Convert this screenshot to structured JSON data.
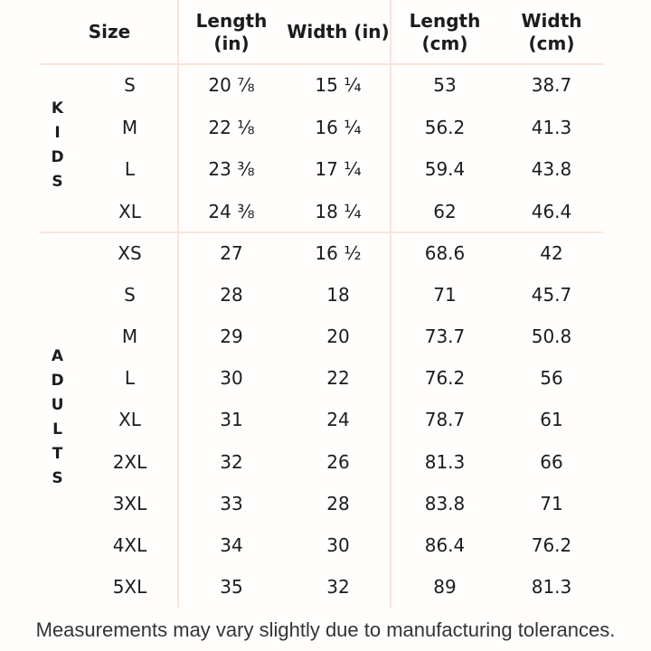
{
  "chart_data": {
    "type": "table",
    "headers": {
      "size": "Size",
      "length_in": "Length\n(in)",
      "width_in": "Width (in)",
      "length_cm": "Length\n(cm)",
      "width_cm": "Width\n(cm)"
    },
    "groups": [
      {
        "label": "KIDS",
        "rows": [
          {
            "size": "S",
            "length_in": "20 ⅞",
            "width_in": "15 ¼",
            "length_cm": "53",
            "width_cm": "38.7"
          },
          {
            "size": "M",
            "length_in": "22 ⅛",
            "width_in": "16 ¼",
            "length_cm": "56.2",
            "width_cm": "41.3"
          },
          {
            "size": "L",
            "length_in": "23 ⅜",
            "width_in": "17 ¼",
            "length_cm": "59.4",
            "width_cm": "43.8"
          },
          {
            "size": "XL",
            "length_in": "24 ⅜",
            "width_in": "18 ¼",
            "length_cm": "62",
            "width_cm": "46.4"
          }
        ]
      },
      {
        "label": "ADULTS",
        "rows": [
          {
            "size": "XS",
            "length_in": "27",
            "width_in": "16 ½",
            "length_cm": "68.6",
            "width_cm": "42"
          },
          {
            "size": "S",
            "length_in": "28",
            "width_in": "18",
            "length_cm": "71",
            "width_cm": "45.7"
          },
          {
            "size": "M",
            "length_in": "29",
            "width_in": "20",
            "length_cm": "73.7",
            "width_cm": "50.8"
          },
          {
            "size": "L",
            "length_in": "30",
            "width_in": "22",
            "length_cm": "76.2",
            "width_cm": "56"
          },
          {
            "size": "XL",
            "length_in": "31",
            "width_in": "24",
            "length_cm": "78.7",
            "width_cm": "61"
          },
          {
            "size": "2XL",
            "length_in": "32",
            "width_in": "26",
            "length_cm": "81.3",
            "width_cm": "66"
          },
          {
            "size": "3XL",
            "length_in": "33",
            "width_in": "28",
            "length_cm": "83.8",
            "width_cm": "71"
          },
          {
            "size": "4XL",
            "length_in": "34",
            "width_in": "30",
            "length_cm": "86.4",
            "width_cm": "76.2"
          },
          {
            "size": "5XL",
            "length_in": "35",
            "width_in": "32",
            "length_cm": "89",
            "width_cm": "81.3"
          }
        ]
      }
    ],
    "footer_note": "Measurements may vary slightly due to manufacturing tolerances.",
    "layout": {
      "grid": "off",
      "row_groups_position": "left",
      "units": [
        "in",
        "cm"
      ]
    }
  },
  "colors": {
    "divider": "#fbe3d9",
    "text": "#1c1c1c",
    "footer_text": "#343434",
    "background": "#fffefd"
  }
}
